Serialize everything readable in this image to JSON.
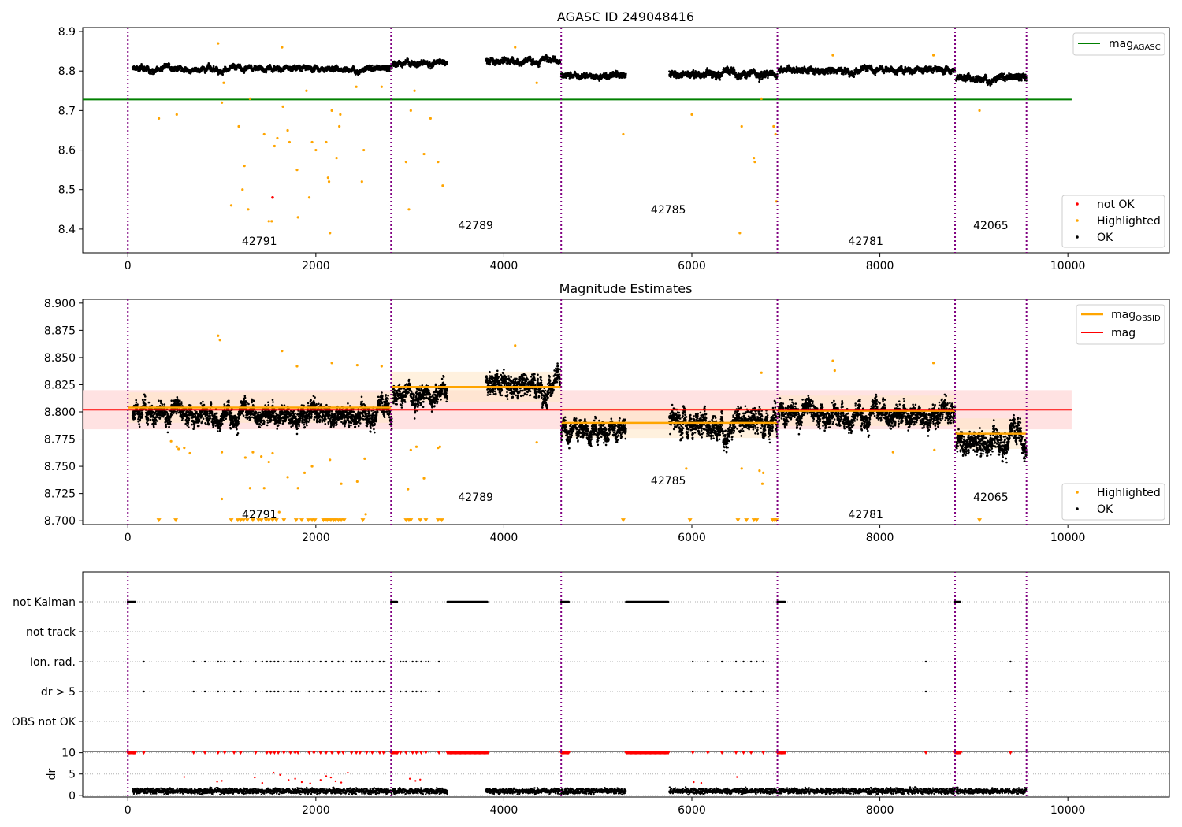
{
  "colors": {
    "ok": "#000000",
    "highlighted": "#ffa500",
    "not_ok": "#ff0000",
    "agasc_line": "#008000",
    "obsid_line": "#ffa500",
    "mag_line": "#ff0000",
    "boundary": "#800080",
    "band_mag": "#ffdddd",
    "band_obsid": "#ffe8c8"
  },
  "chart_data": [
    {
      "type": "scatter",
      "title": "AGASC ID 249048416",
      "xlim": [
        -480,
        11080
      ],
      "ylim": [
        8.34,
        8.91
      ],
      "xticks": [
        0,
        2000,
        4000,
        6000,
        8000,
        10000
      ],
      "xtick_labels": [
        "0",
        "2000",
        "4000",
        "6000",
        "8000",
        "10000"
      ],
      "yticks": [
        8.4,
        8.5,
        8.6,
        8.7,
        8.8,
        8.9
      ],
      "ytick_labels": [
        "8.4",
        "8.5",
        "8.6",
        "8.7",
        "8.8",
        "8.9"
      ],
      "boundaries": [
        0,
        2800,
        4610,
        6910,
        8800,
        9560
      ],
      "obsid_labels": [
        {
          "text": "42791",
          "x": 1400,
          "y": 8.37
        },
        {
          "text": "42789",
          "x": 3700,
          "y": 8.41
        },
        {
          "text": "42785",
          "x": 5750,
          "y": 8.45
        },
        {
          "text": "42781",
          "x": 7850,
          "y": 8.37
        },
        {
          "text": "42065",
          "x": 9180,
          "y": 8.41
        }
      ],
      "segments": [
        {
          "start": 50,
          "end": 2810,
          "level": 8.806,
          "noise": 0.008
        },
        {
          "start": 2820,
          "end": 3400,
          "level": 8.82,
          "noise": 0.008
        },
        {
          "start": 3810,
          "end": 4600,
          "level": 8.828,
          "noise": 0.009
        },
        {
          "start": 4610,
          "end": 5300,
          "level": 8.79,
          "noise": 0.008
        },
        {
          "start": 5760,
          "end": 6910,
          "level": 8.795,
          "noise": 0.01
        },
        {
          "start": 6920,
          "end": 8800,
          "level": 8.802,
          "noise": 0.009
        },
        {
          "start": 8810,
          "end": 9560,
          "level": 8.783,
          "noise": 0.01
        }
      ],
      "agasc_mag": 8.728,
      "agasc_xrange": [
        -480,
        10040
      ],
      "highlighted_points": [
        [
          330,
          8.68
        ],
        [
          520,
          8.69
        ],
        [
          960,
          8.87
        ],
        [
          1000,
          8.72
        ],
        [
          1020,
          8.77
        ],
        [
          1180,
          8.66
        ],
        [
          1240,
          8.56
        ],
        [
          1220,
          8.5
        ],
        [
          1100,
          8.46
        ],
        [
          1280,
          8.45
        ],
        [
          1450,
          8.64
        ],
        [
          1500,
          8.42
        ],
        [
          1530,
          8.42
        ],
        [
          1560,
          8.61
        ],
        [
          1590,
          8.63
        ],
        [
          1700,
          8.65
        ],
        [
          1720,
          8.62
        ],
        [
          1800,
          8.55
        ],
        [
          1810,
          8.43
        ],
        [
          1930,
          8.48
        ],
        [
          1960,
          8.62
        ],
        [
          2000,
          8.6
        ],
        [
          2110,
          8.62
        ],
        [
          2130,
          8.53
        ],
        [
          2140,
          8.52
        ],
        [
          2150,
          8.39
        ],
        [
          2170,
          8.7
        ],
        [
          2220,
          8.58
        ],
        [
          2250,
          8.66
        ],
        [
          2260,
          8.69
        ],
        [
          2490,
          8.52
        ],
        [
          2510,
          8.6
        ],
        [
          2960,
          8.57
        ],
        [
          2990,
          8.45
        ],
        [
          3010,
          8.7
        ],
        [
          3050,
          8.75
        ],
        [
          3150,
          8.59
        ],
        [
          3220,
          8.68
        ],
        [
          3300,
          8.57
        ],
        [
          3350,
          8.51
        ],
        [
          4350,
          8.77
        ],
        [
          5270,
          8.64
        ],
        [
          6000,
          8.69
        ],
        [
          6530,
          8.66
        ],
        [
          6660,
          8.58
        ],
        [
          6670,
          8.57
        ],
        [
          6510,
          8.39
        ],
        [
          6870,
          8.66
        ],
        [
          6890,
          8.64
        ],
        [
          6900,
          8.47
        ],
        [
          9060,
          8.7
        ],
        [
          1640,
          8.86
        ],
        [
          1300,
          8.73
        ],
        [
          1650,
          8.71
        ],
        [
          1900,
          8.75
        ],
        [
          2430,
          8.76
        ],
        [
          2700,
          8.76
        ],
        [
          4120,
          8.86
        ],
        [
          7500,
          8.84
        ],
        [
          8570,
          8.84
        ],
        [
          6740,
          8.73
        ]
      ],
      "not_ok_points": [
        [
          1540,
          8.48
        ]
      ],
      "legend_top": [
        {
          "label": "mag",
          "sub": "AGASC"
        }
      ],
      "legend_bottom": [
        "not OK",
        "Highlighted",
        "OK"
      ]
    },
    {
      "type": "scatter",
      "title": "Magnitude Estimates",
      "xlim": [
        -480,
        11080
      ],
      "ylim": [
        8.6965,
        8.9035
      ],
      "xticks": [
        0,
        2000,
        4000,
        6000,
        8000,
        10000
      ],
      "xtick_labels": [
        "0",
        "2000",
        "4000",
        "6000",
        "8000",
        "10000"
      ],
      "yticks": [
        8.7,
        8.725,
        8.75,
        8.775,
        8.8,
        8.825,
        8.85,
        8.875,
        8.9
      ],
      "ytick_labels": [
        "8.700",
        "8.725",
        "8.750",
        "8.775",
        "8.800",
        "8.825",
        "8.850",
        "8.875",
        "8.900"
      ],
      "boundaries": [
        0,
        2800,
        4610,
        6910,
        8800,
        9560
      ],
      "obsid_labels": [
        {
          "text": "42791",
          "x": 1400,
          "y": 8.706
        },
        {
          "text": "42789",
          "x": 3700,
          "y": 8.722
        },
        {
          "text": "42785",
          "x": 5750,
          "y": 8.737
        },
        {
          "text": "42781",
          "x": 7850,
          "y": 8.706
        },
        {
          "text": "42065",
          "x": 9180,
          "y": 8.722
        }
      ],
      "segments": [
        {
          "start": 50,
          "end": 2810,
          "level": 8.8,
          "noise": 0.011
        },
        {
          "start": 2820,
          "end": 3400,
          "level": 8.818,
          "noise": 0.011
        },
        {
          "start": 3810,
          "end": 4600,
          "level": 8.826,
          "noise": 0.012
        },
        {
          "start": 4610,
          "end": 5300,
          "level": 8.782,
          "noise": 0.011
        },
        {
          "start": 5760,
          "end": 6910,
          "level": 8.79,
          "noise": 0.014
        },
        {
          "start": 6920,
          "end": 8800,
          "level": 8.8,
          "noise": 0.012
        },
        {
          "start": 8810,
          "end": 9560,
          "level": 8.776,
          "noise": 0.013
        }
      ],
      "mag": 8.802,
      "mag_band": [
        8.784,
        8.82
      ],
      "mag_xrange": [
        -480,
        10040
      ],
      "obsid_mags": [
        {
          "start": 0,
          "end": 2800,
          "mag": 8.804,
          "band": [
            8.79,
            8.818
          ]
        },
        {
          "start": 2800,
          "end": 4610,
          "mag": 8.823,
          "band": [
            8.809,
            8.837
          ]
        },
        {
          "start": 4610,
          "end": 6910,
          "mag": 8.79,
          "band": [
            8.776,
            8.804
          ]
        },
        {
          "start": 6910,
          "end": 8800,
          "mag": 8.801,
          "band": [
            8.787,
            8.815
          ]
        },
        {
          "start": 8800,
          "end": 9560,
          "mag": 8.78,
          "band": [
            8.766,
            8.794
          ]
        }
      ],
      "highlighted_points": [
        [
          960,
          8.87
        ],
        [
          980,
          8.866
        ],
        [
          1000,
          8.72
        ],
        [
          1640,
          8.856
        ],
        [
          1800,
          8.842
        ],
        [
          2170,
          8.845
        ],
        [
          2440,
          8.843
        ],
        [
          2700,
          8.842
        ],
        [
          4120,
          8.861
        ],
        [
          7500,
          8.847
        ],
        [
          7520,
          8.838
        ],
        [
          8570,
          8.845
        ],
        [
          6740,
          8.836
        ],
        [
          4350,
          8.772
        ],
        [
          5940,
          8.748
        ],
        [
          6530,
          8.748
        ],
        [
          6720,
          8.746
        ],
        [
          6750,
          8.734
        ],
        [
          6760,
          8.744
        ],
        [
          1300,
          8.73
        ],
        [
          1450,
          8.73
        ],
        [
          1500,
          8.754
        ],
        [
          1700,
          8.74
        ],
        [
          1810,
          8.73
        ],
        [
          1880,
          8.744
        ],
        [
          1960,
          8.75
        ],
        [
          2150,
          8.756
        ],
        [
          2270,
          8.734
        ],
        [
          2440,
          8.736
        ],
        [
          2520,
          8.757
        ],
        [
          2530,
          8.706
        ],
        [
          2980,
          8.729
        ],
        [
          3010,
          8.765
        ],
        [
          3070,
          8.768
        ],
        [
          3150,
          8.739
        ],
        [
          3300,
          8.767
        ],
        [
          3320,
          8.768
        ],
        [
          540,
          8.766
        ],
        [
          660,
          8.762
        ],
        [
          1000,
          8.763
        ],
        [
          1330,
          8.763
        ],
        [
          1420,
          8.759
        ],
        [
          1610,
          8.708
        ],
        [
          1540,
          8.762
        ],
        [
          1250,
          8.758
        ],
        [
          8140,
          8.763
        ],
        [
          8580,
          8.765
        ],
        [
          520,
          8.768
        ],
        [
          460,
          8.773
        ],
        [
          600,
          8.767
        ]
      ],
      "triangle_x": [
        330,
        510,
        1100,
        1170,
        1200,
        1230,
        1270,
        1330,
        1390,
        1420,
        1470,
        1500,
        1540,
        1580,
        1660,
        1790,
        1850,
        1920,
        1960,
        1990,
        2080,
        2100,
        2120,
        2140,
        2160,
        2190,
        2210,
        2240,
        2270,
        2300,
        2500,
        2960,
        2990,
        3010,
        3110,
        3170,
        3300,
        3340,
        5270,
        5980,
        6490,
        6580,
        6660,
        6690,
        6860,
        6880,
        6900,
        9060
      ],
      "legend_top": [
        {
          "label": "mag",
          "sub": "OBSID"
        },
        {
          "label": "mag",
          "sub": ""
        }
      ],
      "legend_bottom": [
        "Highlighted",
        "OK"
      ]
    },
    {
      "type": "scatter",
      "title": "",
      "xlim": [
        -480,
        11080
      ],
      "categories": [
        "not Kalman",
        "not track",
        "Ion. rad.",
        "dr > 5",
        "OBS not OK"
      ],
      "boundaries": [
        0,
        2800,
        4610,
        6910,
        8800,
        9560
      ],
      "not_kalman_ranges": [
        [
          0,
          80
        ],
        [
          2800,
          2870
        ],
        [
          3400,
          3830
        ],
        [
          4610,
          4690
        ],
        [
          5300,
          5750
        ],
        [
          6910,
          6990
        ],
        [
          8800,
          8860
        ]
      ],
      "ion_rad_x": [
        170,
        700,
        820,
        960,
        990,
        1030,
        1130,
        1200,
        1360,
        1430,
        1480,
        1520,
        1560,
        1600,
        1660,
        1730,
        1780,
        1810,
        1860,
        1930,
        1980,
        2050,
        2110,
        2170,
        2240,
        2290,
        2380,
        2430,
        2470,
        2540,
        2600,
        2680,
        2720,
        2900,
        2930,
        2960,
        3030,
        3070,
        3120,
        3170,
        3200,
        3310,
        6010,
        6170,
        6320,
        6470,
        6550,
        6630,
        6690,
        6760,
        8490,
        9390
      ],
      "dr5_x": [
        170,
        700,
        820,
        960,
        1030,
        1130,
        1200,
        1360,
        1480,
        1520,
        1560,
        1600,
        1660,
        1730,
        1780,
        1810,
        1930,
        1980,
        2050,
        2110,
        2170,
        2240,
        2290,
        2380,
        2430,
        2470,
        2540,
        2600,
        2680,
        2720,
        2900,
        2960,
        3030,
        3070,
        3120,
        3170,
        3310,
        6010,
        6170,
        6320,
        6470,
        6550,
        6630,
        6760,
        8490,
        9390
      ]
    },
    {
      "type": "scatter",
      "title": "",
      "xlim": [
        -480,
        11080
      ],
      "ylim": [
        -0.4,
        10.3
      ],
      "ylabel": "dr",
      "xticks": [
        0,
        2000,
        4000,
        6000,
        8000,
        10000
      ],
      "xtick_labels": [
        "0",
        "2000",
        "4000",
        "6000",
        "8000",
        "10000"
      ],
      "yticks": [
        0,
        5,
        10
      ],
      "ytick_labels": [
        "0",
        "5",
        "10"
      ],
      "boundaries": [
        0,
        2800,
        4610,
        6910,
        8800,
        9560
      ],
      "ok_ranges": [
        [
          50,
          2810
        ],
        [
          2820,
          3400
        ],
        [
          3810,
          4600
        ],
        [
          4610,
          5300
        ],
        [
          5760,
          6910
        ],
        [
          6920,
          8800
        ],
        [
          8810,
          9560
        ]
      ],
      "red_tri_ranges": [
        [
          0,
          80
        ],
        [
          2800,
          2870
        ],
        [
          3400,
          3830
        ],
        [
          4610,
          4690
        ],
        [
          5300,
          5750
        ],
        [
          6910,
          6990
        ],
        [
          8800,
          8860
        ]
      ],
      "red_tri_x": [
        170,
        700,
        820,
        960,
        1030,
        1130,
        1200,
        1360,
        1480,
        1520,
        1560,
        1600,
        1660,
        1730,
        1780,
        1810,
        1930,
        1980,
        2050,
        2110,
        2170,
        2240,
        2290,
        2380,
        2430,
        2470,
        2540,
        2600,
        2680,
        2720,
        2900,
        2960,
        3030,
        3070,
        3120,
        3170,
        3310,
        6010,
        6170,
        6320,
        6470,
        6550,
        6630,
        6760,
        8490,
        9390
      ],
      "red_dots": [
        [
          600,
          4.3
        ],
        [
          950,
          3.2
        ],
        [
          1000,
          3.4
        ],
        [
          1350,
          4.2
        ],
        [
          1430,
          2.9
        ],
        [
          1550,
          5.3
        ],
        [
          1620,
          4.8
        ],
        [
          1710,
          3.6
        ],
        [
          1780,
          3.9
        ],
        [
          1850,
          3.1
        ],
        [
          1940,
          2.8
        ],
        [
          2050,
          3.6
        ],
        [
          2110,
          4.5
        ],
        [
          2160,
          4.2
        ],
        [
          2210,
          3.3
        ],
        [
          2270,
          3.0
        ],
        [
          2340,
          5.3
        ],
        [
          3000,
          3.9
        ],
        [
          3060,
          3.4
        ],
        [
          3110,
          3.7
        ],
        [
          6020,
          3.1
        ],
        [
          6100,
          2.9
        ],
        [
          6480,
          4.3
        ]
      ]
    }
  ]
}
